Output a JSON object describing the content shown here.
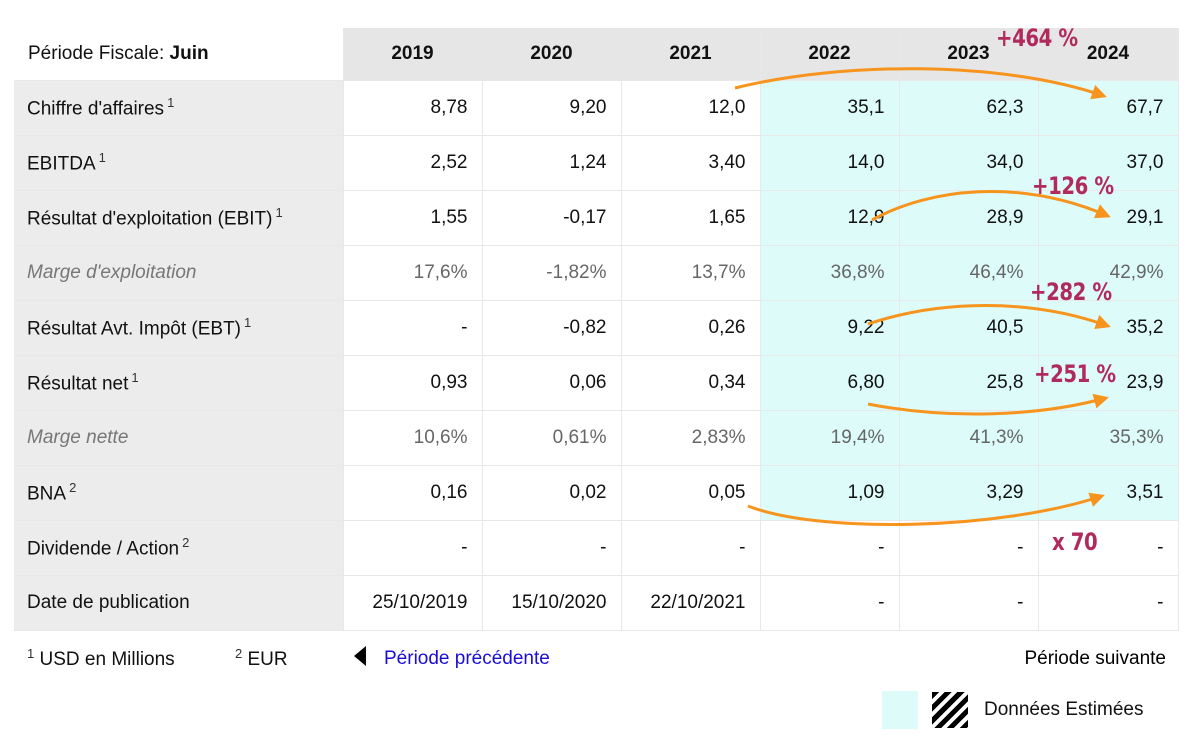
{
  "header": {
    "period_label": "Période Fiscale:",
    "period_value": "Juin",
    "years": [
      "2019",
      "2020",
      "2021",
      "2022",
      "2023",
      "2024"
    ]
  },
  "rows": [
    {
      "label": "Chiffre d'affaires",
      "note": "1",
      "values": [
        "8,78",
        "9,20",
        "12,0",
        "35,1",
        "62,3",
        "67,7"
      ]
    },
    {
      "label": "EBITDA",
      "note": "1",
      "values": [
        "2,52",
        "1,24",
        "3,40",
        "14,0",
        "34,0",
        "37,0"
      ]
    },
    {
      "label": "Résultat d'exploitation (EBIT)",
      "note": "1",
      "values": [
        "1,55",
        "-0,17",
        "1,65",
        "12,9",
        "28,9",
        "29,1"
      ]
    },
    {
      "label": "Marge d'exploitation",
      "note": "",
      "values": [
        "17,6%",
        "-1,82%",
        "13,7%",
        "36,8%",
        "46,4%",
        "42,9%"
      ]
    },
    {
      "label": "Résultat Avt. Impôt (EBT)",
      "note": "1",
      "values": [
        "-",
        "-0,82",
        "0,26",
        "9,22",
        "40,5",
        "35,2"
      ]
    },
    {
      "label": "Résultat net",
      "note": "1",
      "values": [
        "0,93",
        "0,06",
        "0,34",
        "6,80",
        "25,8",
        "23,9"
      ]
    },
    {
      "label": "Marge nette",
      "note": "",
      "values": [
        "10,6%",
        "0,61%",
        "2,83%",
        "19,4%",
        "41,3%",
        "35,3%"
      ]
    },
    {
      "label": "BNA",
      "note": "2",
      "values": [
        "0,16",
        "0,02",
        "0,05",
        "1,09",
        "3,29",
        "3,51"
      ]
    },
    {
      "label": "Dividende / Action",
      "note": "2",
      "values": [
        "-",
        "-",
        "-",
        "-",
        "-",
        "-"
      ]
    },
    {
      "label": "Date de publication",
      "note": "",
      "values": [
        "25/10/2019",
        "15/10/2020",
        "22/10/2021",
        "-",
        "-",
        "-"
      ]
    }
  ],
  "footer": {
    "note1_sup": "1",
    "note1_text": "USD en Millions",
    "note2_sup": "2",
    "note2_text": "EUR",
    "prev_label": "Période précédente",
    "next_label": "Période suivante",
    "legend_label": "Données Estimées"
  },
  "annotations": {
    "a1": "+464 %",
    "a2": "+126 %",
    "a3": "+282 %",
    "a4": "+251 %",
    "a5": "x 70"
  },
  "colors": {
    "estimate_bg": "#dcfbf9",
    "arrow": "#f7941d",
    "annotation_text": "#b02a5c",
    "link": "#1a0dd8"
  }
}
